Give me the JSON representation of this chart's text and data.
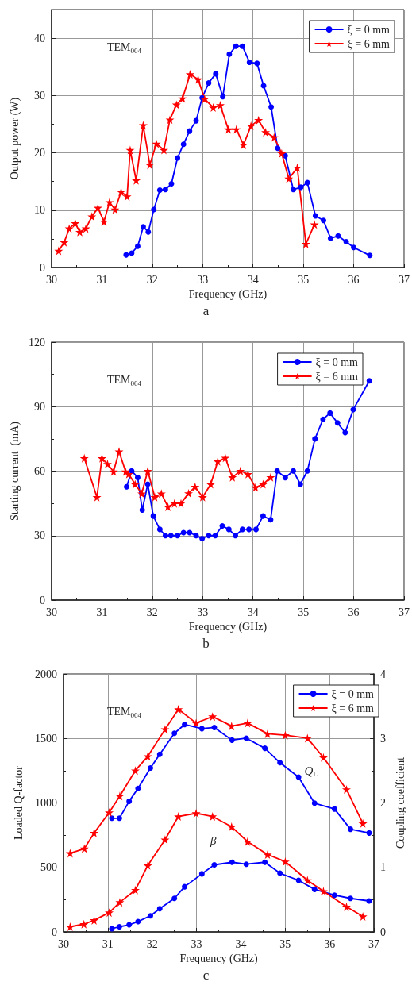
{
  "chart_data": [
    {
      "type": "line",
      "title": "a",
      "xlabel": "Frequency (GHz)",
      "ylabel": "Output power (W)",
      "annotations": [
        "TEM$_{004}$"
      ],
      "xlim": [
        30,
        37
      ],
      "xticks": [
        30,
        31,
        32,
        33,
        34,
        35,
        36,
        37
      ],
      "ylim": [
        0,
        45
      ],
      "yticks": [
        0,
        10,
        20,
        30,
        40
      ],
      "grid": true,
      "legend": "top right",
      "line_style": "solid",
      "series": [
        {
          "name": "ξ = 0 mm",
          "color": "#0000ff",
          "marker": "circle",
          "x": [
            31.48,
            31.59,
            31.71,
            31.82,
            31.92,
            32.03,
            32.15,
            32.26,
            32.38,
            32.5,
            32.62,
            32.74,
            32.87,
            32.99,
            33.12,
            33.26,
            33.4,
            33.53,
            33.66,
            33.79,
            33.93,
            34.08,
            34.21,
            34.36,
            34.49,
            34.64,
            34.8,
            34.95,
            35.08,
            35.24,
            35.4,
            35.54,
            35.69,
            35.85,
            36.0,
            36.32
          ],
          "values": [
            2.2,
            2.5,
            3.7,
            7.1,
            6.2,
            10.1,
            13.5,
            13.6,
            14.6,
            19.1,
            21.5,
            23.8,
            25.6,
            29.6,
            32.2,
            33.8,
            29.8,
            37.2,
            38.6,
            38.6,
            35.8,
            35.6,
            31.7,
            28.0,
            20.8,
            19.5,
            13.6,
            14.0,
            14.8,
            9.0,
            8.2,
            5.1,
            5.5,
            4.5,
            3.5,
            2.1
          ]
        },
        {
          "name": "ξ = 6 mm",
          "color": "#ff0000",
          "marker": "star",
          "x": [
            30.14,
            30.25,
            30.35,
            30.47,
            30.56,
            30.68,
            30.8,
            30.92,
            31.04,
            31.15,
            31.26,
            31.38,
            31.5,
            31.56,
            31.68,
            31.82,
            31.95,
            32.08,
            32.23,
            32.35,
            32.48,
            32.6,
            32.75,
            32.91,
            33.04,
            33.21,
            33.35,
            33.51,
            33.67,
            33.81,
            33.96,
            34.11,
            34.25,
            34.42,
            34.57,
            34.71,
            34.88,
            35.05,
            35.22
          ],
          "values": [
            2.9,
            4.4,
            6.8,
            7.7,
            6.2,
            6.8,
            8.9,
            10.4,
            8.0,
            11.4,
            10.1,
            13.2,
            12.4,
            20.5,
            15.2,
            24.8,
            17.9,
            21.6,
            20.5,
            25.8,
            28.4,
            29.5,
            33.7,
            32.8,
            29.4,
            27.9,
            28.3,
            24.1,
            24.1,
            21.4,
            24.7,
            25.7,
            23.6,
            22.7,
            19.9,
            15.5,
            17.4,
            4.1,
            7.5
          ]
        }
      ]
    },
    {
      "type": "line",
      "title": "b",
      "xlabel": "Frequency (GHz)",
      "ylabel": "Starting current  (mA)",
      "annotations": [
        "TEM$_{004}$"
      ],
      "xlim": [
        30,
        37
      ],
      "xticks": [
        30,
        31,
        32,
        33,
        34,
        35,
        36,
        37
      ],
      "ylim": [
        0,
        120
      ],
      "yticks": [
        0,
        30,
        60,
        90,
        120
      ],
      "grid": true,
      "legend": "top right",
      "line_style": "solid",
      "series": [
        {
          "name": "ξ = 0 mm",
          "color": "#0000ff",
          "marker": "circle",
          "x": [
            31.49,
            31.59,
            31.71,
            31.8,
            31.91,
            32.02,
            32.15,
            32.26,
            32.37,
            32.5,
            32.62,
            32.74,
            32.87,
            32.99,
            33.12,
            33.25,
            33.39,
            33.52,
            33.65,
            33.79,
            33.92,
            34.06,
            34.2,
            34.35,
            34.48,
            34.64,
            34.8,
            34.94,
            35.08,
            35.23,
            35.39,
            35.53,
            35.68,
            35.83,
            35.99,
            36.31
          ],
          "values": [
            52.7,
            60.1,
            57.0,
            41.9,
            53.9,
            39.1,
            32.9,
            30.0,
            30.0,
            30.0,
            31.4,
            31.4,
            30.0,
            28.6,
            30.0,
            30.0,
            34.5,
            32.9,
            30.0,
            32.9,
            32.9,
            32.9,
            39.1,
            37.4,
            60.1,
            57.0,
            60.1,
            53.9,
            60.1,
            75.0,
            84.1,
            87.0,
            82.4,
            77.9,
            88.6,
            102.0
          ]
        },
        {
          "name": "ξ = 6 mm",
          "color": "#ff0000",
          "marker": "star",
          "x": [
            30.65,
            30.9,
            31.0,
            31.11,
            31.23,
            31.34,
            31.47,
            31.53,
            31.66,
            31.79,
            31.91,
            32.05,
            32.18,
            32.31,
            32.44,
            32.57,
            32.72,
            32.85,
            33.0,
            33.16,
            33.3,
            33.45,
            33.59,
            33.75,
            33.9,
            34.05,
            34.2,
            34.35
          ],
          "values": [
            66.0,
            47.9,
            66.0,
            63.3,
            59.8,
            69.1,
            59.8,
            58.6,
            53.9,
            49.6,
            60.1,
            47.9,
            49.6,
            43.4,
            45.0,
            45.0,
            49.7,
            52.7,
            47.9,
            53.9,
            64.5,
            66.2,
            57.1,
            60.1,
            58.6,
            52.4,
            53.9,
            57.1
          ]
        }
      ]
    },
    {
      "type": "line",
      "title": "c",
      "xlabel": "Frequency (GHz)",
      "ylabel": "Loaded Q-factor",
      "y2label": "Coupling coefficient",
      "annotations": [
        "TEM$_{004}$",
        "Q$_{L}$",
        "β"
      ],
      "xlim": [
        30,
        37
      ],
      "xticks": [
        30,
        31,
        32,
        33,
        34,
        35,
        36,
        37
      ],
      "ylim": [
        0,
        2000
      ],
      "yticks": [
        0,
        500,
        1000,
        1500,
        2000
      ],
      "y2lim": [
        0,
        4
      ],
      "y2ticks": [
        0,
        1,
        2,
        3,
        4
      ],
      "grid": true,
      "legend": "top right",
      "line_style": "solid",
      "series": [
        {
          "name": "ξ = 0 mm",
          "color": "#0000ff",
          "marker": "circle",
          "x": [
            31.09,
            31.26,
            31.48,
            31.68,
            31.96,
            32.17,
            32.5,
            32.73,
            33.12,
            33.4,
            33.8,
            34.12,
            34.54,
            34.88,
            35.3,
            35.66,
            36.11,
            36.47,
            36.89
          ],
          "values": [
            881,
            881,
            1013,
            1112,
            1271,
            1377,
            1540,
            1608,
            1576,
            1585,
            1487,
            1502,
            1424,
            1312,
            1200,
            998,
            953,
            796,
            767
          ]
        },
        {
          "name": "ξ = 6 mm",
          "color": "#ff0000",
          "marker": "star",
          "x": [
            30.15,
            30.47,
            30.69,
            31.03,
            31.27,
            31.62,
            31.9,
            32.29,
            32.59,
            32.99,
            33.36,
            33.79,
            34.15,
            34.6,
            35.0,
            35.5,
            35.86,
            36.38,
            36.75
          ],
          "values": [
            610,
            646,
            767,
            926,
            1054,
            1251,
            1361,
            1570,
            1726,
            1619,
            1670,
            1596,
            1619,
            1536,
            1525,
            1502,
            1352,
            1105,
            841
          ]
        },
        {
          "color": "#0000ff",
          "marker": "circle",
          "axis": "y2",
          "x": [
            31.09,
            31.26,
            31.48,
            31.68,
            31.96,
            32.17,
            32.5,
            32.73,
            33.12,
            33.4,
            33.8,
            34.12,
            34.54,
            34.88,
            35.3,
            35.66,
            36.11,
            36.47,
            36.89
          ],
          "values": [
            0.05,
            0.08,
            0.11,
            0.16,
            0.25,
            0.36,
            0.52,
            0.7,
            0.9,
            1.04,
            1.08,
            1.05,
            1.08,
            0.91,
            0.8,
            0.66,
            0.57,
            0.52,
            0.48
          ]
        },
        {
          "color": "#ff0000",
          "marker": "star",
          "axis": "y2",
          "x": [
            30.15,
            30.46,
            30.69,
            31.03,
            31.27,
            31.62,
            31.9,
            32.29,
            32.59,
            32.99,
            33.36,
            33.79,
            34.15,
            34.6,
            35.0,
            35.5,
            35.86,
            36.38,
            36.75
          ],
          "values": [
            0.08,
            0.12,
            0.18,
            0.3,
            0.46,
            0.65,
            1.03,
            1.43,
            1.79,
            1.84,
            1.79,
            1.63,
            1.4,
            1.2,
            1.09,
            0.8,
            0.63,
            0.39,
            0.24
          ]
        }
      ]
    }
  ]
}
